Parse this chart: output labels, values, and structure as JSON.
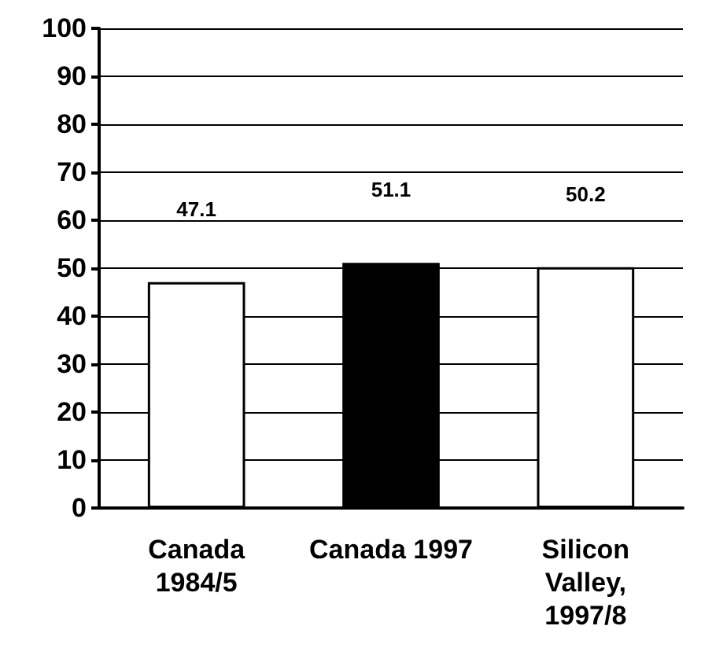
{
  "chart_data": {
    "type": "bar",
    "categories": [
      "Canada\n1984/5",
      "Canada 1997",
      "Silicon\nValley,\n1997/8"
    ],
    "values": [
      47.1,
      51.1,
      50.2
    ],
    "colors": [
      "#ffffff",
      "#000000",
      "#ffffff"
    ],
    "ylim": [
      0,
      100
    ],
    "yticks": [
      0,
      10,
      20,
      30,
      40,
      50,
      60,
      70,
      80,
      90,
      100
    ],
    "grid": "y",
    "data_labels": true
  }
}
